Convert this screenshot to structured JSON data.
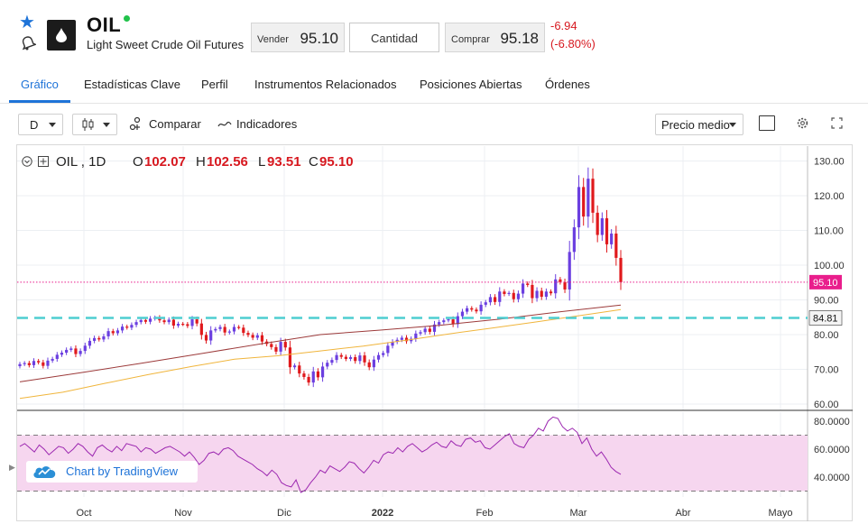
{
  "instrument": {
    "symbol": "OIL",
    "name": "Light Sweet Crude Oil Futures",
    "sell_label": "Vender",
    "sell_price": "95.10",
    "quantity_placeholder": "Cantidad",
    "buy_label": "Comprar",
    "buy_price": "95.18",
    "change_abs": "-6.94",
    "change_pct": "(-6.80%)"
  },
  "tabs": [
    {
      "label": "Gráfico",
      "active": true
    },
    {
      "label": "Estadísticas Clave"
    },
    {
      "label": "Perfil"
    },
    {
      "label": "Instrumentos Relacionados"
    },
    {
      "label": "Posiciones Abiertas"
    },
    {
      "label": "Órdenes"
    }
  ],
  "toolbar": {
    "interval": "D",
    "compare_label": "Comparar",
    "indicators_label": "Indicadores",
    "price_type": "Precio medio"
  },
  "legend": {
    "series": "OIL , 1D",
    "o_label": "O",
    "o_value": "102.07",
    "h_label": "H",
    "h_value": "102.56",
    "l_label": "L",
    "l_value": "93.51",
    "c_label": "C",
    "c_value": "95.10"
  },
  "watermark": "Chart by TradingView",
  "colors": {
    "up": "#6b3fe0",
    "down": "#e0191c",
    "accent": "#1e73d8",
    "ma_fast": "#9c3a3a",
    "ma_slow": "#f0b53c",
    "rsi": "#9c27b0",
    "rsi_band": "#f6d6ef",
    "price_tag": "#e91e8c",
    "hline": "#4ecdd1"
  },
  "chart_data": {
    "type": "candlestick",
    "price_axis": {
      "ticks": [
        130.0,
        120.0,
        110.0,
        100.0,
        90.0,
        80.0,
        70.0,
        60.0
      ],
      "tick_labels": [
        "130.00",
        "120.00",
        "110.00",
        "100.00",
        "90.00",
        "80.00",
        "70.00",
        "60.00"
      ],
      "ylim": [
        58,
        133
      ]
    },
    "time_axis": {
      "labels": [
        "Oct",
        "Nov",
        "Dic",
        "2022",
        "Feb",
        "Mar",
        "Abr",
        "Mayo"
      ]
    },
    "last_price": 95.1,
    "last_price_label": "95.10",
    "horizontal_line": 84.81,
    "horizontal_line_label": "84.81",
    "closes": [
      71.5,
      71.8,
      71.2,
      72.4,
      72.0,
      71.0,
      72.5,
      73.0,
      74.2,
      74.8,
      75.6,
      76.0,
      74.4,
      75.3,
      76.8,
      78.2,
      79.0,
      78.6,
      79.5,
      81.0,
      80.4,
      81.2,
      82.3,
      82.0,
      82.8,
      83.6,
      84.2,
      83.7,
      84.6,
      84.9,
      84.1,
      83.6,
      84.3,
      82.6,
      83.1,
      83.0,
      82.5,
      84.4,
      83.2,
      79.9,
      78.3,
      81.2,
      81.6,
      82.2,
      80.6,
      80.9,
      82.2,
      82.0,
      80.5,
      79.9,
      79.1,
      79.8,
      78.0,
      77.3,
      76.4,
      75.1,
      77.9,
      76.3,
      70.6,
      71.1,
      68.8,
      67.8,
      66.2,
      69.4,
      67.7,
      70.8,
      71.9,
      72.7,
      74.1,
      73.6,
      73.0,
      73.5,
      72.4,
      74.0,
      72.0,
      70.6,
      72.8,
      74.1,
      74.7,
      76.8,
      77.9,
      78.5,
      79.1,
      78.1,
      78.8,
      80.3,
      80.7,
      81.7,
      80.8,
      82.9,
      83.6,
      84.1,
      84.4,
      83.0,
      85.3,
      86.6,
      87.6,
      87.2,
      86.7,
      88.6,
      89.3,
      90.8,
      89.4,
      92.4,
      91.7,
      92.0,
      90.2,
      91.8,
      94.7,
      94.3,
      90.5,
      92.6,
      90.9,
      92.4,
      91.9,
      95.9,
      95.1,
      93.0,
      103.8,
      110.9,
      122.5,
      114.0,
      124.9,
      115.1,
      108.7,
      113.5,
      106.0,
      109.1,
      102.1,
      95.1
    ],
    "ma_fast": [
      66.4,
      69.0,
      71.7,
      74.5,
      77.3,
      80.0,
      81.3,
      82.7,
      84.5,
      86.6,
      88.5
    ],
    "ma_slow": [
      61.6,
      63.4,
      66.0,
      68.5,
      70.8,
      72.9,
      73.9,
      75.3,
      76.7,
      78.4,
      80.2,
      81.9,
      83.6,
      85.4,
      87.2
    ],
    "rsi": {
      "ticks": [
        80.0,
        60.0,
        40.0
      ],
      "tick_labels": [
        "80.0000",
        "60.0000",
        "40.0000"
      ],
      "bands": [
        70,
        30
      ],
      "values": [
        62,
        64,
        61,
        58,
        63,
        60,
        56,
        59,
        62,
        61,
        57,
        60,
        64,
        62,
        58,
        55,
        61,
        63,
        60,
        58,
        62,
        59,
        64,
        63,
        62,
        58,
        61,
        60,
        57,
        59,
        61,
        62,
        60,
        58,
        55,
        58,
        54,
        49,
        52,
        57,
        58,
        56,
        60,
        61,
        59,
        55,
        53,
        51,
        49,
        46,
        44,
        41,
        45,
        42,
        36,
        34,
        33,
        38,
        29,
        31,
        36,
        40,
        45,
        43,
        48,
        46,
        44,
        47,
        51,
        50,
        46,
        43,
        47,
        52,
        50,
        56,
        58,
        57,
        61,
        58,
        62,
        64,
        61,
        58,
        60,
        63,
        65,
        62,
        61,
        66,
        63,
        62,
        67,
        68,
        65,
        66,
        61,
        60,
        63,
        66,
        69,
        71,
        64,
        62,
        61,
        67,
        70,
        75,
        73,
        80,
        83,
        82,
        76,
        73,
        75,
        72,
        64,
        68,
        60,
        55,
        58,
        53,
        47,
        44,
        42
      ]
    }
  }
}
